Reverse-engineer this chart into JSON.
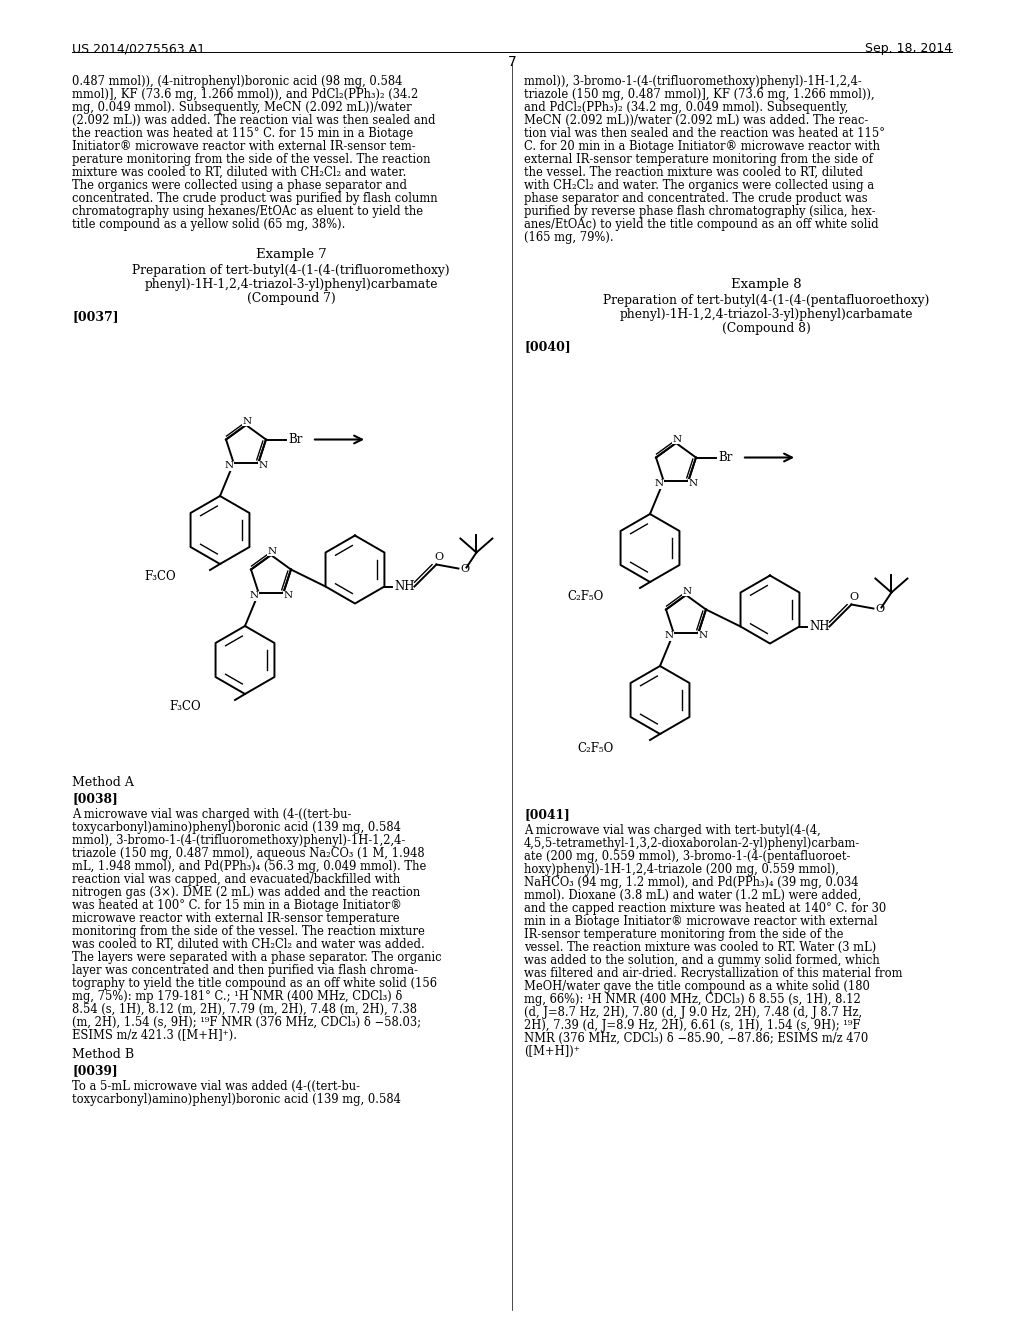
{
  "page_header_left": "US 2014/0275563 A1",
  "page_header_right": "Sep. 18, 2014",
  "page_number": "7",
  "background_color": "#ffffff",
  "left_col_lines": [
    "0.487 mmol)), (4-nitrophenyl)boronic acid (98 mg, 0.584",
    "mmol)], KF (73.6 mg, 1.266 mmol)), and PdCl₂(PPh₃)₂ (34.2",
    "mg, 0.049 mmol). Subsequently, MeCN (2.092 mL))/water",
    "(2.092 mL)) was added. The reaction vial was then sealed and",
    "the reaction was heated at 115° C. for 15 min in a Biotage",
    "Initiator® microwave reactor with external IR-sensor tem-",
    "perature monitoring from the side of the vessel. The reaction",
    "mixture was cooled to RT, diluted with CH₂Cl₂ and water.",
    "The organics were collected using a phase separator and",
    "concentrated. The crude product was purified by flash column",
    "chromatography using hexanes/EtOAc as eluent to yield the",
    "title compound as a yellow solid (65 mg, 38%)."
  ],
  "right_col_lines": [
    "mmol)), 3-bromo-1-(4-(trifluoromethoxy)phenyl)-1H-1,2,4-",
    "triazole (150 mg, 0.487 mmol)], KF (73.6 mg, 1.266 mmol)),",
    "and PdCl₂(PPh₃)₂ (34.2 mg, 0.049 mmol). Subsequently,",
    "MeCN (2.092 mL))/water (2.092 mL) was added. The reac-",
    "tion vial was then sealed and the reaction was heated at 115°",
    "C. for 20 min in a Biotage Initiator® microwave reactor with",
    "external IR-sensor temperature monitoring from the side of",
    "the vessel. The reaction mixture was cooled to RT, diluted",
    "with CH₂Cl₂ and water. The organics were collected using a",
    "phase separator and concentrated. The crude product was",
    "purified by reverse phase flash chromatography (silica, hex-",
    "anes/EtOAc) to yield the title compound as an off white solid",
    "(165 mg, 79%)."
  ],
  "ex7_title": "Example 7",
  "ex7_sub1": "Preparation of tert-butyl(4-(1-(4-(trifluoromethoxy)",
  "ex7_sub2": "phenyl)-1H-1,2,4-triazol-3-yl)phenyl)carbamate",
  "ex7_sub3": "(Compound 7)",
  "ex7_ref": "[0037]",
  "ex8_title": "Example 8",
  "ex8_sub1": "Preparation of tert-butyl(4-(1-(4-(pentafluoroethoxy)",
  "ex8_sub2": "phenyl)-1H-1,2,4-triazol-3-yl)phenyl)carbamate",
  "ex8_sub3": "(Compound 8)",
  "ex8_ref": "[0040]",
  "method_a_head": "Method A",
  "method_a_ref": "[0038]",
  "method_a_lines": [
    "A microwave vial was charged with (4-((tert-bu-",
    "toxycarbonyl)amino)phenyl)boronic acid (139 mg, 0.584",
    "mmol), 3-bromo-1-(4-(trifluoromethoxy)phenyl)-1H-1,2,4-",
    "triazole (150 mg, 0.487 mmol), aqueous Na₂CO₃ (1 M, 1.948",
    "mL, 1.948 mmol), and Pd(PPh₃)₄ (56.3 mg, 0.049 mmol). The",
    "reaction vial was capped, and evacuated/backfilled with",
    "nitrogen gas (3×). DME (2 mL) was added and the reaction",
    "was heated at 100° C. for 15 min in a Biotage Initiator®",
    "microwave reactor with external IR-sensor temperature",
    "monitoring from the side of the vessel. The reaction mixture",
    "was cooled to RT, diluted with CH₂Cl₂ and water was added.",
    "The layers were separated with a phase separator. The organic",
    "layer was concentrated and then purified via flash chroma-",
    "tography to yield the title compound as an off white solid (156",
    "mg, 75%): mp 179-181° C.; ¹H NMR (400 MHz, CDCl₃) δ",
    "8.54 (s, 1H), 8.12 (m, 2H), 7.79 (m, 2H), 7.48 (m, 2H), 7.38",
    "(m, 2H), 1.54 (s, 9H); ¹⁹F NMR (376 MHz, CDCl₃) δ −58.03;",
    "ESIMS m/z 421.3 ([M+H]⁺)."
  ],
  "method_b_head": "Method B",
  "method_b_ref": "[0039]",
  "method_b_lines": [
    "To a 5-mL microwave vial was added (4-((tert-bu-",
    "toxycarbonyl)amino)phenyl)boronic acid (139 mg, 0.584"
  ],
  "right_ref": "[0041]",
  "right_lines": [
    "A microwave vial was charged with tert-butyl(4-(4,",
    "4,5,5-tetramethyl-1,3,2-dioxaborolan-2-yl)phenyl)carbam-",
    "ate (200 mg, 0.559 mmol), 3-bromo-1-(4-(pentafluoroet-",
    "hoxy)phenyl)-1H-1,2,4-triazole (200 mg, 0.559 mmol),",
    "NaHCO₃ (94 mg, 1.2 mmol), and Pd(PPh₃)₄ (39 mg, 0.034",
    "mmol). Dioxane (3.8 mL) and water (1.2 mL) were added,",
    "and the capped reaction mixture was heated at 140° C. for 30",
    "min in a Biotage Initiator® microwave reactor with external",
    "IR-sensor temperature monitoring from the side of the",
    "vessel. The reaction mixture was cooled to RT. Water (3 mL)",
    "was added to the solution, and a gummy solid formed, which",
    "was filtered and air-dried. Recrystallization of this material from",
    "MeOH/water gave the title compound as a white solid (180",
    "mg, 66%): ¹H NMR (400 MHz, CDCl₃) δ 8.55 (s, 1H), 8.12",
    "(d, J=8.7 Hz, 2H), 7.80 (d, J 9.0 Hz, 2H), 7.48 (d, J 8.7 Hz,",
    "2H), 7.39 (d, J=8.9 Hz, 2H), 6.61 (s, 1H), 1.54 (s, 9H); ¹⁹F",
    "NMR (376 MHz, CDCl₃) δ −85.90, −87.86; ESIMS m/z 470",
    "([M+H])⁺"
  ]
}
